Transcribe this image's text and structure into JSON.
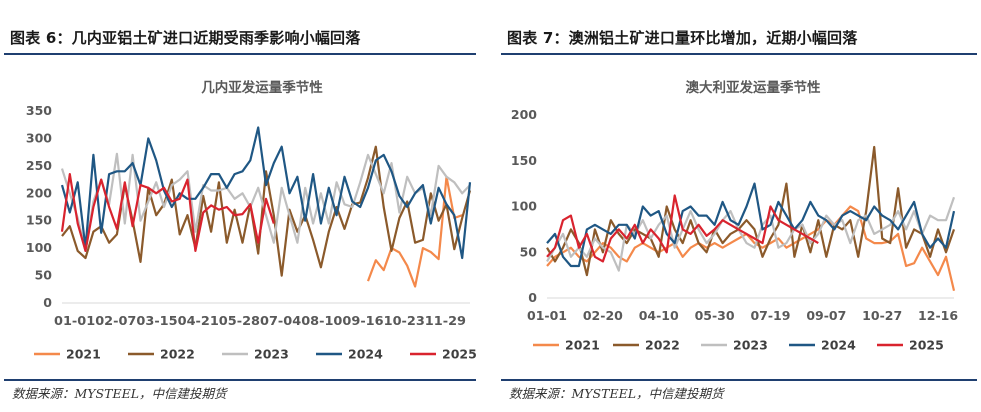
{
  "left": {
    "figure_title": "图表 6：几内亚铝土矿进口近期受雨季影响小幅回落",
    "source": "数据来源：MYSTEEL，中信建投期货"
  },
  "right": {
    "figure_title": "图表 7：澳洲铝土矿进口量环比增加，近期小幅回落",
    "source": "数据来源：MYSTEEL，中信建投期货"
  },
  "colors": {
    "2021": "#f4894b",
    "2022": "#8b5a2b",
    "2023": "#bfbfbf",
    "2024": "#1f5784",
    "2025": "#d9232e",
    "rule": "#1f3f70"
  },
  "chart_data": [
    {
      "type": "line",
      "title": "几内亚发运量季节性",
      "ylim": [
        0,
        350
      ],
      "yticks": [
        0,
        50,
        100,
        150,
        200,
        250,
        300,
        350
      ],
      "x_tick_labels": [
        "01-01",
        "02-07",
        "03-15",
        "04-21",
        "05-28",
        "07-04",
        "08-10",
        "09-16",
        "10-23",
        "11-29"
      ],
      "x_count": 53,
      "legend_position": "bottom",
      "series": [
        {
          "name": "2021",
          "start": 39,
          "values": [
            40,
            78,
            60,
            100,
            92,
            68,
            30,
            100,
            93,
            80,
            230,
            155,
            160
          ]
        },
        {
          "name": "2022",
          "start": 0,
          "values": [
            122,
            140,
            95,
            82,
            130,
            140,
            110,
            125,
            215,
            150,
            75,
            210,
            160,
            180,
            225,
            125,
            160,
            100,
            195,
            130,
            220,
            110,
            170,
            110,
            180,
            90,
            240,
            160,
            50,
            170,
            130,
            160,
            115,
            65,
            130,
            175,
            135,
            180,
            183,
            228,
            285,
            175,
            95,
            155,
            185,
            110,
            115,
            200,
            150,
            180,
            98,
            155,
            205
          ]
        },
        {
          "name": "2023",
          "start": 0,
          "values": [
            245,
            200,
            155,
            95,
            185,
            225,
            180,
            272,
            145,
            270,
            150,
            185,
            220,
            175,
            215,
            225,
            240,
            130,
            215,
            205,
            205,
            210,
            190,
            200,
            175,
            210,
            160,
            110,
            210,
            160,
            110,
            210,
            145,
            200,
            145,
            220,
            180,
            175,
            220,
            270,
            235,
            200,
            255,
            165,
            230,
            200,
            210,
            160,
            250,
            230,
            220,
            200,
            215
          ]
        },
        {
          "name": "2024",
          "start": 0,
          "values": [
            215,
            165,
            220,
            100,
            270,
            128,
            235,
            240,
            240,
            255,
            215,
            300,
            260,
            205,
            175,
            200,
            190,
            190,
            210,
            235,
            235,
            210,
            235,
            240,
            260,
            320,
            215,
            255,
            285,
            200,
            230,
            150,
            235,
            145,
            210,
            160,
            230,
            185,
            175,
            210,
            260,
            270,
            240,
            195,
            175,
            200,
            215,
            145,
            210,
            180,
            160,
            82,
            220
          ]
        },
        {
          "name": "2025",
          "start": 0,
          "values": [
            130,
            235,
            145,
            95,
            175,
            225,
            175,
            135,
            220,
            140,
            215,
            210,
            200,
            210,
            185,
            190,
            225,
            95,
            165,
            178,
            170,
            175,
            160,
            162,
            180,
            110,
            190,
            145
          ]
        }
      ]
    },
    {
      "type": "line",
      "title": "澳大利亚发运量季节性",
      "ylim": [
        0,
        200
      ],
      "yticks": [
        0,
        50,
        100,
        150,
        200
      ],
      "x_tick_labels": [
        "01-01",
        "02-20",
        "04-10",
        "05-30",
        "07-19",
        "09-07",
        "10-27",
        "12-16"
      ],
      "x_count": 52,
      "legend_position": "bottom",
      "series": [
        {
          "name": "2021",
          "start": 0,
          "values": [
            35,
            45,
            50,
            55,
            45,
            40,
            50,
            60,
            55,
            45,
            40,
            55,
            60,
            55,
            50,
            55,
            60,
            45,
            55,
            60,
            55,
            60,
            55,
            60,
            65,
            70,
            60,
            55,
            60,
            65,
            55,
            60,
            65,
            70,
            75,
            85,
            80,
            90,
            100,
            95,
            65,
            60,
            60,
            62,
            70,
            35,
            38,
            55,
            40,
            25,
            45,
            8
          ]
        },
        {
          "name": "2022",
          "start": 0,
          "values": [
            55,
            40,
            55,
            75,
            60,
            25,
            75,
            50,
            85,
            70,
            60,
            75,
            70,
            65,
            45,
            100,
            75,
            60,
            85,
            60,
            50,
            75,
            60,
            70,
            75,
            85,
            75,
            45,
            65,
            80,
            125,
            45,
            80,
            50,
            85,
            45,
            80,
            75,
            85,
            45,
            95,
            165,
            65,
            60,
            120,
            55,
            75,
            70,
            45,
            75,
            50,
            75
          ]
        },
        {
          "name": "2023",
          "start": 0,
          "values": [
            40,
            55,
            70,
            45,
            55,
            45,
            65,
            55,
            50,
            30,
            80,
            70,
            85,
            65,
            80,
            90,
            55,
            75,
            95,
            75,
            60,
            70,
            85,
            95,
            75,
            60,
            55,
            80,
            90,
            55,
            60,
            75,
            80,
            60,
            70,
            90,
            80,
            85,
            60,
            85,
            90,
            70,
            75,
            80,
            95,
            75,
            95,
            70,
            90,
            85,
            85,
            110
          ]
        },
        {
          "name": "2024",
          "start": 0,
          "values": [
            60,
            70,
            45,
            35,
            35,
            75,
            80,
            75,
            70,
            80,
            80,
            65,
            100,
            90,
            95,
            70,
            60,
            95,
            100,
            90,
            90,
            80,
            105,
            85,
            80,
            100,
            125,
            75,
            80,
            105,
            90,
            75,
            85,
            105,
            90,
            85,
            75,
            90,
            95,
            90,
            85,
            100,
            90,
            85,
            75,
            90,
            105,
            70,
            55,
            65,
            55,
            95
          ]
        },
        {
          "name": "2025",
          "start": 0,
          "values": [
            45,
            55,
            85,
            90,
            55,
            70,
            45,
            40,
            65,
            75,
            65,
            80,
            60,
            75,
            65,
            50,
            112,
            75,
            70,
            80,
            68,
            75,
            85,
            80,
            75,
            70,
            65,
            60,
            100,
            85,
            80,
            75,
            70,
            65,
            60
          ]
        }
      ]
    }
  ]
}
